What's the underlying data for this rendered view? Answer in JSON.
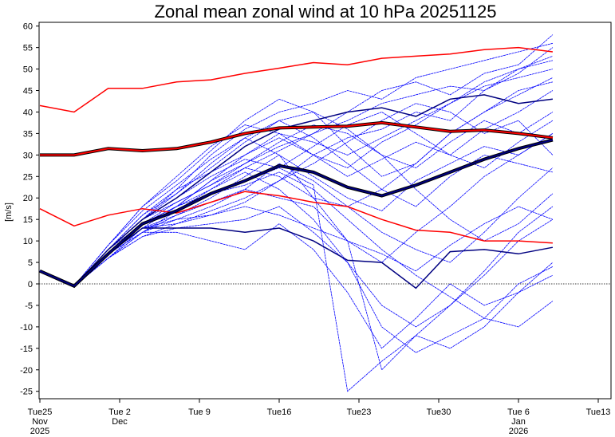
{
  "chart_data": {
    "type": "line",
    "title": "Zonal mean zonal wind at 10 hPa 20251125",
    "ylabel": "[m/s]",
    "xlabel": "",
    "ylim": [
      -27,
      61
    ],
    "yticks": [
      -25,
      -20,
      -15,
      -10,
      -5,
      0,
      5,
      10,
      15,
      20,
      25,
      30,
      35,
      40,
      45,
      50,
      55,
      60
    ],
    "xlim_days": [
      0,
      49.5
    ],
    "xticks": [
      {
        "day": 0,
        "l1": "Tue25",
        "l2": "Nov",
        "l3": "2025"
      },
      {
        "day": 7,
        "l1": "Tue 2",
        "l2": "Dec",
        "l3": ""
      },
      {
        "day": 14,
        "l1": "Tue 9",
        "l2": "",
        "l3": ""
      },
      {
        "day": 21,
        "l1": "Tue16",
        "l2": "",
        "l3": ""
      },
      {
        "day": 28,
        "l1": "Tue23",
        "l2": "",
        "l3": ""
      },
      {
        "day": 35,
        "l1": "Tue30",
        "l2": "",
        "l3": ""
      },
      {
        "day": 42,
        "l1": "Tue 6",
        "l2": "Jan",
        "l3": "2026"
      },
      {
        "day": 49,
        "l1": "Tue13",
        "l2": "",
        "l3": ""
      }
    ],
    "x_days": [
      0,
      3,
      6,
      9,
      12,
      15,
      18,
      21,
      24,
      27,
      30,
      33,
      36,
      39,
      42,
      45
    ],
    "zero_line": true,
    "colors": {
      "members": "#0000ff",
      "climatology": "#ff0000",
      "ensemble_mean": "#00007f",
      "highlight_member": "#000080"
    },
    "climatology": {
      "max": [
        41.5,
        40,
        45.5,
        45.5,
        47,
        47.5,
        49,
        50.2,
        51.5,
        51,
        52.5,
        53,
        53.5,
        54.5,
        55,
        54
      ],
      "mean": [
        30,
        30,
        31.5,
        31,
        31.5,
        33,
        35,
        36.3,
        36.5,
        36.7,
        37.5,
        36.5,
        35.5,
        35.8,
        35,
        34
      ],
      "min": [
        17.5,
        13.5,
        16,
        17.5,
        16.5,
        19,
        21.5,
        20.5,
        19,
        18,
        15,
        12.5,
        12,
        10,
        10,
        9.5
      ]
    },
    "ensemble_mean": [
      3,
      -0.5,
      7,
      14,
      17,
      21,
      24,
      27.5,
      26,
      22.5,
      20.5,
      23,
      26,
      29,
      31.5,
      33.5
    ],
    "highlight_members": [
      [
        3,
        -0.5,
        7,
        13,
        13,
        13,
        12,
        13,
        10,
        5.5,
        5,
        -1,
        7.5,
        8,
        7,
        8.5
      ],
      [
        3,
        -0.5,
        8,
        15,
        20,
        26,
        32,
        36,
        38,
        40,
        41,
        39,
        43,
        44,
        42,
        43
      ]
    ],
    "members": [
      [
        3,
        -0.5,
        8,
        15,
        22,
        30,
        36,
        40,
        42,
        45,
        43,
        48,
        50,
        52,
        54,
        56
      ],
      [
        3,
        -0.5,
        7,
        14,
        18,
        24,
        30,
        35,
        33,
        30,
        34,
        38,
        42,
        47,
        50,
        52
      ],
      [
        3,
        -0.5,
        6,
        12,
        15,
        18,
        22,
        28,
        24,
        18,
        22,
        28,
        35,
        40,
        44,
        48
      ],
      [
        3,
        -0.5,
        9,
        18,
        25,
        32,
        37,
        35,
        30,
        25,
        29,
        33,
        30,
        36,
        40,
        45
      ],
      [
        3,
        -0.5,
        7,
        13,
        16,
        20,
        25,
        30,
        20,
        10,
        5,
        12,
        18,
        25,
        30,
        35
      ],
      [
        3,
        -0.5,
        6,
        11,
        13,
        14,
        15,
        18,
        12,
        5,
        -5,
        -10,
        -5,
        2,
        10,
        15
      ],
      [
        3,
        -0.5,
        8,
        16,
        21,
        27,
        33,
        38,
        40,
        36,
        30,
        27,
        33,
        38,
        35,
        40
      ],
      [
        3,
        -0.5,
        7,
        12,
        12,
        10,
        8,
        14,
        8,
        -2,
        -15,
        -8,
        0,
        -5,
        -2,
        5
      ],
      [
        3,
        -0.5,
        8,
        15,
        19,
        23,
        28,
        32,
        35,
        40,
        45,
        47,
        44,
        49,
        51,
        58
      ],
      [
        3,
        -0.5,
        7,
        14,
        17,
        22,
        26,
        22,
        15,
        5,
        -10,
        -16,
        -12,
        -8,
        0,
        4
      ],
      [
        3,
        -0.5,
        6,
        13,
        14,
        17,
        20,
        24,
        28,
        33,
        38,
        42,
        40,
        35,
        38,
        30
      ],
      [
        3,
        -0.5,
        9,
        17,
        23,
        29,
        34,
        38,
        34,
        28,
        22,
        18,
        25,
        30,
        28,
        26
      ],
      [
        3,
        -0.5,
        7,
        14,
        18,
        21,
        23,
        26,
        22,
        15,
        8,
        2,
        -3,
        -8,
        -10,
        -4
      ],
      [
        3,
        -0.5,
        8,
        15,
        20,
        25,
        29,
        27,
        32,
        37,
        40,
        35,
        30,
        27,
        33,
        38
      ],
      [
        3,
        -0.5,
        6,
        12,
        16,
        19,
        22,
        20,
        18,
        10,
        -20,
        -12,
        -5,
        3,
        12,
        18
      ],
      [
        3,
        -0.5,
        7,
        13,
        18,
        24,
        28,
        33,
        37,
        35,
        30,
        22,
        15,
        10,
        14,
        21
      ],
      [
        3,
        -0.5,
        8,
        16,
        22,
        26,
        30,
        34,
        30,
        27,
        33,
        37,
        42,
        46,
        48,
        50
      ],
      [
        3,
        -0.5,
        7,
        14,
        19,
        23,
        27,
        25,
        20,
        18,
        12,
        8,
        5,
        12,
        20,
        27
      ],
      [
        3,
        -0.5,
        6,
        11,
        14,
        16,
        19,
        24,
        30,
        34,
        36,
        40,
        38,
        45,
        49,
        55
      ],
      [
        3,
        -0.5,
        8,
        15,
        21,
        28,
        34,
        30,
        25,
        20,
        17,
        24,
        28,
        32,
        30,
        35
      ],
      [
        3,
        -0.5,
        7,
        13,
        15,
        16,
        18,
        16,
        13,
        10,
        7,
        3,
        9,
        14,
        18,
        15
      ],
      [
        3,
        -0.5,
        9,
        18,
        24,
        31,
        38,
        43,
        40,
        32,
        25,
        28,
        35,
        40,
        45,
        47
      ],
      [
        3,
        -0.5,
        7,
        12,
        17,
        21,
        24,
        27,
        23,
        -25,
        -18,
        -12,
        -15,
        -10,
        -2,
        2
      ],
      [
        3,
        -0.5,
        8,
        14,
        18,
        22,
        27,
        31,
        35,
        38,
        42,
        44,
        46,
        45,
        50,
        53
      ]
    ]
  }
}
